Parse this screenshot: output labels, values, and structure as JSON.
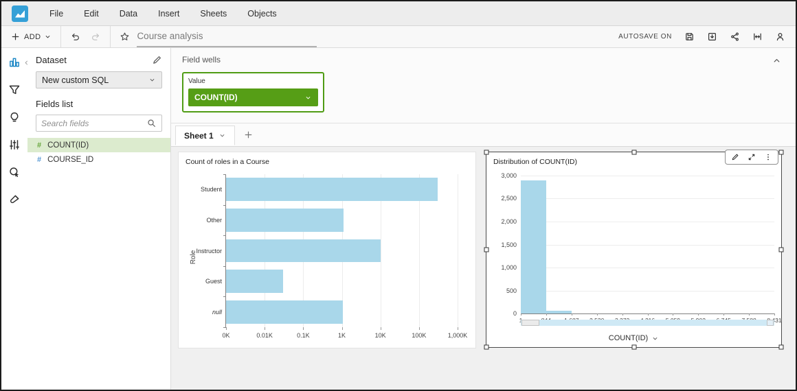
{
  "colors": {
    "brand_blue": "#35a0d7",
    "rail_selected_blue": "#1b87c5",
    "field_well_green": "#569e16",
    "field_well_border_green": "#4f9c14",
    "selected_field_bg": "#dcebce",
    "bar_blue": "#a9d7ea",
    "hash_green": "#67a63d",
    "hash_blue": "#5b9bd5"
  },
  "menu_bar": {
    "items": [
      "File",
      "Edit",
      "Data",
      "Insert",
      "Sheets",
      "Objects"
    ]
  },
  "toolbar": {
    "add_label": "ADD",
    "analysis_name": "Course analysis",
    "autosave_label": "AUTOSAVE ON",
    "right_icons": [
      "save-icon",
      "export-icon",
      "share-icon",
      "fit-width-icon",
      "user-icon"
    ]
  },
  "left_rail": {
    "icons": [
      "visualize-icon",
      "filter-icon",
      "insights-icon",
      "parameters-icon",
      "actions-icon",
      "themes-icon"
    ],
    "selected": "visualize-icon"
  },
  "dataset_panel": {
    "title": "Dataset",
    "dataset_name": "New custom SQL",
    "fields_list_label": "Fields list",
    "search_placeholder": "Search fields",
    "fields": [
      {
        "name": "COUNT(ID)",
        "hash": "green",
        "selected": true
      },
      {
        "name": "COURSE_ID",
        "hash": "blue",
        "selected": false
      }
    ]
  },
  "field_wells": {
    "label": "Field wells",
    "wells": [
      {
        "label": "Value",
        "value": "COUNT(ID)"
      }
    ]
  },
  "sheets": {
    "tabs": [
      {
        "label": "Sheet 1",
        "active": true
      }
    ]
  },
  "chart_data": [
    {
      "type": "bar",
      "orientation": "horizontal",
      "title": "Count of roles in a Course",
      "ylabel": "Role",
      "categories": [
        "Student",
        "Other",
        "Instructor",
        "Guest",
        "null"
      ],
      "values": [
        300000,
        1100,
        10000,
        30,
        1050
      ],
      "x_scale": "log",
      "x_ticks": [
        "0K",
        "0.01K",
        "0.1K",
        "1K",
        "10K",
        "100K",
        "1,000K"
      ],
      "xlim_log_decades": 6,
      "grid": true,
      "legend": "none"
    },
    {
      "type": "histogram",
      "title": "Distribution of COUNT(ID)",
      "xlabel": "COUNT(ID)",
      "bin_edges": [
        1,
        844,
        1687,
        2530,
        3373,
        4216,
        5059,
        5902,
        6745,
        7588,
        8431
      ],
      "x_tick_labels": [
        "1",
        "844",
        "1,687",
        "2,530",
        "3,373",
        "4,216",
        "5,059",
        "5,902",
        "6,745",
        "7,588",
        "8,431"
      ],
      "counts": [
        2900,
        55,
        0,
        0,
        0,
        0,
        0,
        0,
        0,
        0
      ],
      "y_ticks": [
        "3,000",
        "2,500",
        "2,000",
        "1,500",
        "1,000",
        "500",
        "0"
      ],
      "ylim": [
        0,
        3000
      ],
      "grid": true,
      "selected": true,
      "legend": "none"
    }
  ]
}
